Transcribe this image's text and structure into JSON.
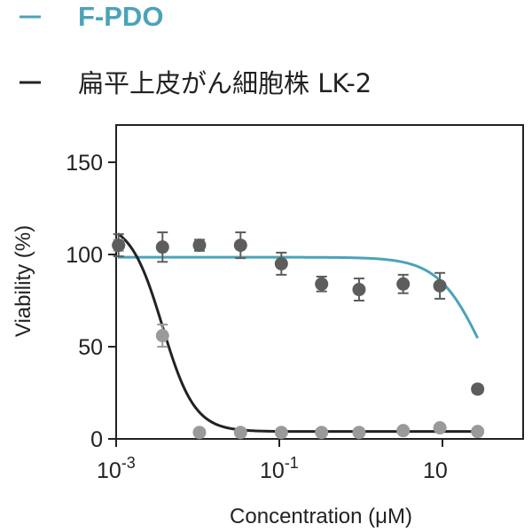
{
  "legend": {
    "fpdo_label": "F-PDO",
    "lk2_label": "扁平上皮がん細胞株 LK-2"
  },
  "colors": {
    "fpdo": "#4aa3b9",
    "fpdo_points": "#5d5d5d",
    "lk2": "#222222",
    "lk2_points": "#9a9a9a",
    "axis": "#222222"
  },
  "chart_data": {
    "type": "scatter",
    "xscale": "log",
    "xlim": [
      0.001,
      100
    ],
    "ylim": [
      0,
      170
    ],
    "xlabel": "Concentration (μM)",
    "ylabel": "Viability (%)",
    "xticks": [
      {
        "value": 0.001,
        "base": "10",
        "exp": "-3"
      },
      {
        "value": 0.1,
        "base": "10",
        "exp": "-1"
      },
      {
        "value": 10,
        "base": "10",
        "exp": ""
      }
    ],
    "yticks": [
      0,
      50,
      100,
      150
    ],
    "series": [
      {
        "name": "F-PDO",
        "points": [
          {
            "x": 0.00107,
            "y": 105,
            "err": 6
          },
          {
            "x": 0.0037,
            "y": 104,
            "err": 8
          },
          {
            "x": 0.0105,
            "y": 105,
            "err": 3
          },
          {
            "x": 0.0335,
            "y": 105,
            "err": 7
          },
          {
            "x": 0.106,
            "y": 95,
            "err": 6
          },
          {
            "x": 0.33,
            "y": 84,
            "err": 4
          },
          {
            "x": 0.95,
            "y": 81,
            "err": 6
          },
          {
            "x": 3.3,
            "y": 84,
            "err": 5
          },
          {
            "x": 9.3,
            "y": 83,
            "err": 7
          },
          {
            "x": 27,
            "y": 27,
            "err": 2
          }
        ],
        "fit": {
          "top": 98.5,
          "bottom": 0,
          "ec50": 31,
          "hill": 1.6,
          "xmin": 0.00105,
          "xmax": 27
        }
      },
      {
        "name": "扁平上皮がん細胞株 LK-2",
        "points": [
          {
            "x": 0.00107,
            "y": 105,
            "err": 3
          },
          {
            "x": 0.0037,
            "y": 56,
            "err": 6
          },
          {
            "x": 0.0105,
            "y": 3.5,
            "err": 1
          },
          {
            "x": 0.0335,
            "y": 3.5,
            "err": 1
          },
          {
            "x": 0.106,
            "y": 3.5,
            "err": 1
          },
          {
            "x": 0.33,
            "y": 3.5,
            "err": 1
          },
          {
            "x": 0.95,
            "y": 3.5,
            "err": 1
          },
          {
            "x": 3.3,
            "y": 4.5,
            "err": 1
          },
          {
            "x": 9.3,
            "y": 6,
            "err": 1
          },
          {
            "x": 27,
            "y": 4,
            "err": 1
          }
        ],
        "fit": {
          "top": 118,
          "bottom": 4,
          "ec50": 0.0037,
          "hill": 2.2,
          "xmin": 0.00105,
          "xmax": 27
        }
      }
    ]
  }
}
